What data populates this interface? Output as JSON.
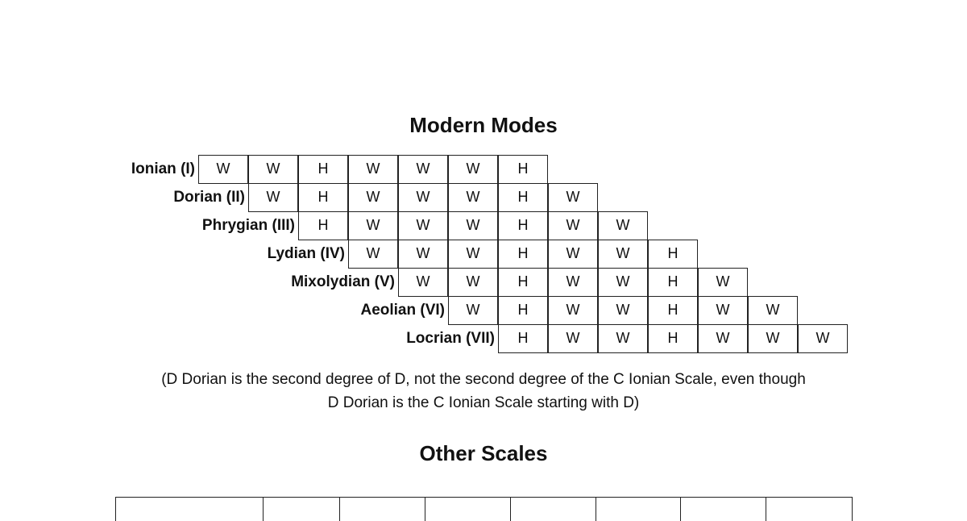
{
  "heading_modes": "Modern Modes",
  "modes": [
    {
      "label": "Ionian (I)",
      "steps": [
        "W",
        "W",
        "H",
        "W",
        "W",
        "W",
        "H"
      ]
    },
    {
      "label": "Dorian (II)",
      "steps": [
        "W",
        "H",
        "W",
        "W",
        "W",
        "H",
        "W"
      ]
    },
    {
      "label": "Phrygian (III)",
      "steps": [
        "H",
        "W",
        "W",
        "W",
        "H",
        "W",
        "W"
      ]
    },
    {
      "label": "Lydian (IV)",
      "steps": [
        "W",
        "W",
        "W",
        "H",
        "W",
        "W",
        "H"
      ]
    },
    {
      "label": "Mixolydian (V)",
      "steps": [
        "W",
        "W",
        "H",
        "W",
        "W",
        "H",
        "W"
      ]
    },
    {
      "label": "Aeolian (VI)",
      "steps": [
        "W",
        "H",
        "W",
        "W",
        "H",
        "W",
        "W"
      ]
    },
    {
      "label": "Locrian (VII)",
      "steps": [
        "H",
        "W",
        "W",
        "H",
        "W",
        "W",
        "W"
      ]
    }
  ],
  "note_line1": "(D Dorian is the second degree of D, not the second degree of the C Ionian Scale, even though",
  "note_line2": "D Dorian is the C Ionian Scale starting with D)",
  "heading_other": "Other Scales",
  "other_scales_columns": 8
}
